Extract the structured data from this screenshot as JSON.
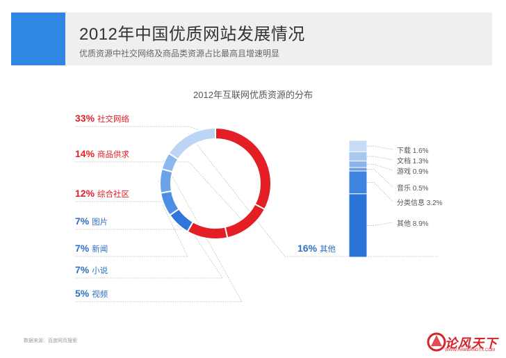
{
  "header": {
    "title": "2012年中国优质网站发展情况",
    "subtitle": "优质资源中社交网络及商品类资源占比最高且增速明显"
  },
  "chart_data": {
    "type": "pie",
    "title": "2012年互联网优质资源的分布",
    "slices": [
      {
        "name": "社交网络",
        "pct_label": "33%",
        "value": 33,
        "color": "#e31e24"
      },
      {
        "name": "商品供求",
        "pct_label": "14%",
        "value": 14,
        "color": "#e31e24"
      },
      {
        "name": "综合社区",
        "pct_label": "12%",
        "value": 12,
        "color": "#e31e24"
      },
      {
        "name": "图片",
        "pct_label": "7%",
        "value": 7,
        "color": "#2f76d8"
      },
      {
        "name": "新闻",
        "pct_label": "7%",
        "value": 7,
        "color": "#4a8ee6"
      },
      {
        "name": "小说",
        "pct_label": "7%",
        "value": 7,
        "color": "#6aa3ea"
      },
      {
        "name": "视频",
        "pct_label": "5%",
        "value": 5,
        "color": "#8bb8ee"
      },
      {
        "name": "其他",
        "pct_label": "16%",
        "value": 16,
        "color": "#bcd5f5"
      }
    ],
    "breakdown": {
      "of": "其他",
      "items": [
        {
          "name": "下载",
          "label": "下载 1.6%",
          "value": 1.6,
          "color": "#c8dcf6"
        },
        {
          "name": "文档",
          "label": "文档 1.3%",
          "value": 1.3,
          "color": "#a9c8f1"
        },
        {
          "name": "游戏",
          "label": "游戏 0.9%",
          "value": 0.9,
          "color": "#8ab3ec"
        },
        {
          "name": "音乐",
          "label": "音乐 0.5%",
          "value": 0.5,
          "color": "#6c9fe6"
        },
        {
          "name": "分类信息",
          "label": "分类信息 3.2%",
          "value": 3.2,
          "color": "#3e84de"
        },
        {
          "name": "其他",
          "label": "其他 8.9%",
          "value": 8.9,
          "color": "#2a74d8"
        }
      ]
    }
  },
  "footer": {
    "source": "数据来源：百度网页搜索",
    "watermark": "论风天下",
    "watermark_url": "WWW.HAMBANGTX.COM"
  }
}
